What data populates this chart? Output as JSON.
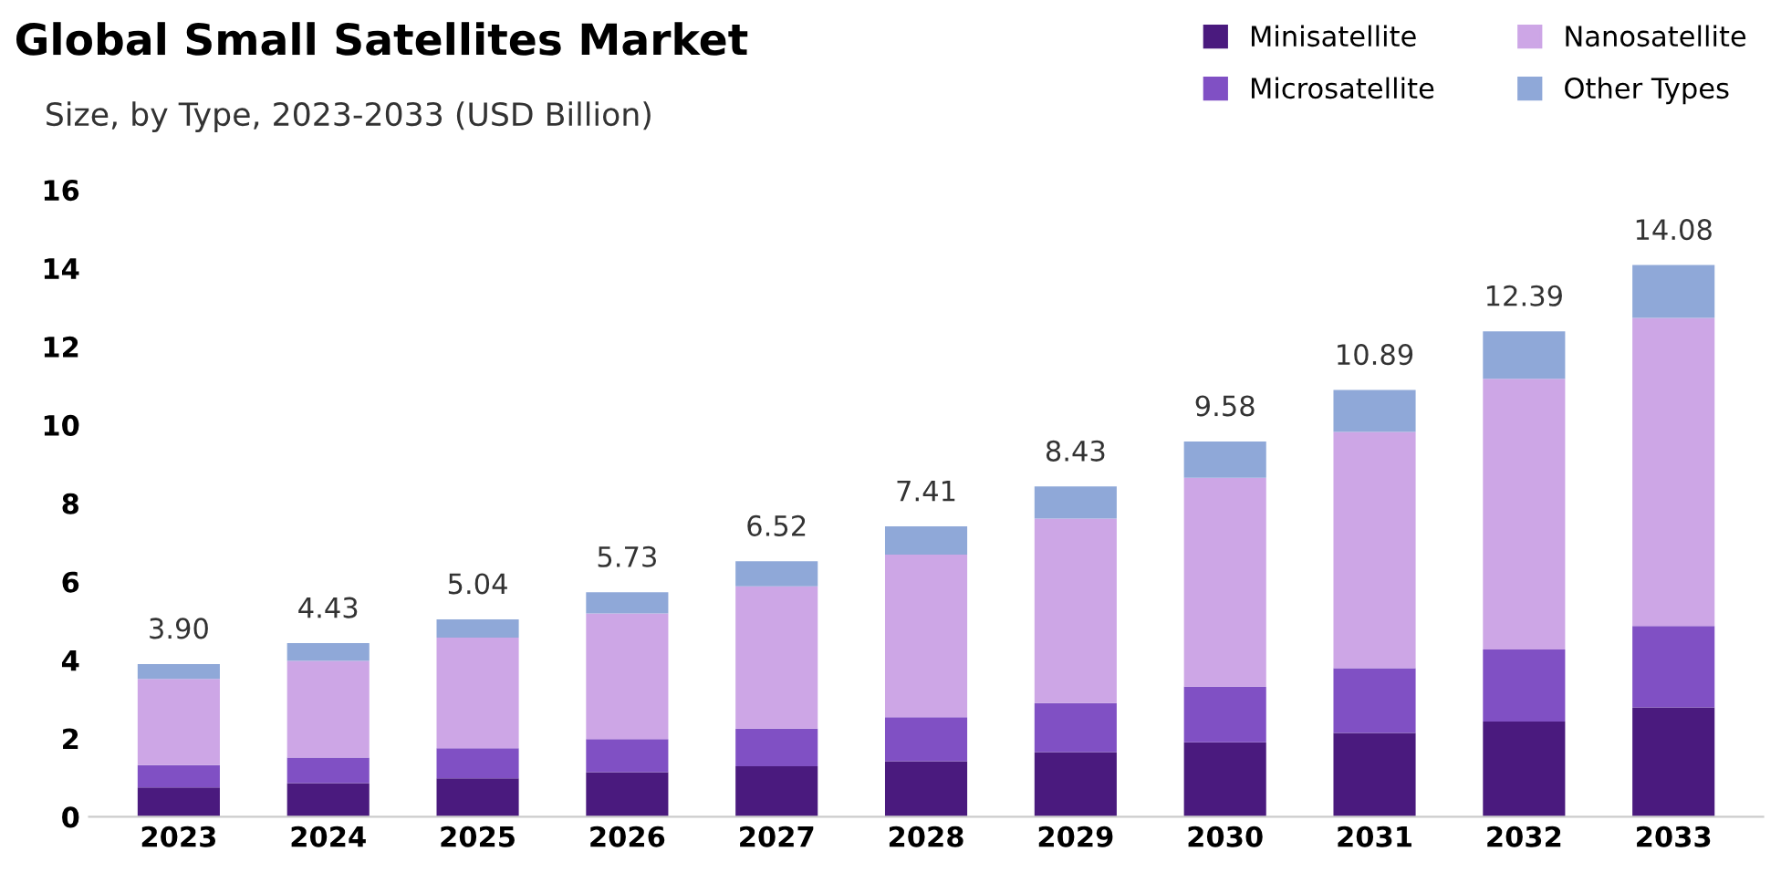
{
  "chart_data": {
    "type": "bar",
    "title": "Global Small Satellites Market",
    "subtitle": "Size, by Type, 2023-2033 (USD Billion)",
    "categories": [
      "2023",
      "2024",
      "2025",
      "2026",
      "2027",
      "2028",
      "2029",
      "2030",
      "2031",
      "2032",
      "2033"
    ],
    "stacked": true,
    "series": [
      {
        "name": "Minisatellite",
        "color": "#4a1a7e",
        "values": [
          0.75,
          0.86,
          0.98,
          1.14,
          1.29,
          1.42,
          1.65,
          1.9,
          2.14,
          2.43,
          2.79
        ]
      },
      {
        "name": "Microsatellite",
        "color": "#8050c4",
        "values": [
          0.57,
          0.65,
          0.77,
          0.84,
          0.96,
          1.12,
          1.25,
          1.42,
          1.65,
          1.84,
          2.08
        ]
      },
      {
        "name": "Nanosatellite",
        "color": "#cda6e6",
        "values": [
          2.2,
          2.47,
          2.82,
          3.21,
          3.63,
          4.15,
          4.71,
          5.33,
          6.03,
          6.91,
          7.86
        ]
      },
      {
        "name": "Other Types",
        "color": "#8fa8d8",
        "values": [
          0.38,
          0.45,
          0.47,
          0.54,
          0.64,
          0.72,
          0.82,
          0.93,
          1.07,
          1.21,
          1.35
        ]
      }
    ],
    "totals": [
      "3.90",
      "4.43",
      "5.04",
      "5.73",
      "6.52",
      "7.41",
      "8.43",
      "9.58",
      "10.89",
      "12.39",
      "14.08"
    ],
    "ylim": [
      0,
      16
    ],
    "yticks": [
      0,
      2,
      4,
      6,
      8,
      10,
      12,
      14,
      16
    ],
    "grid": false,
    "legend": "top right"
  }
}
